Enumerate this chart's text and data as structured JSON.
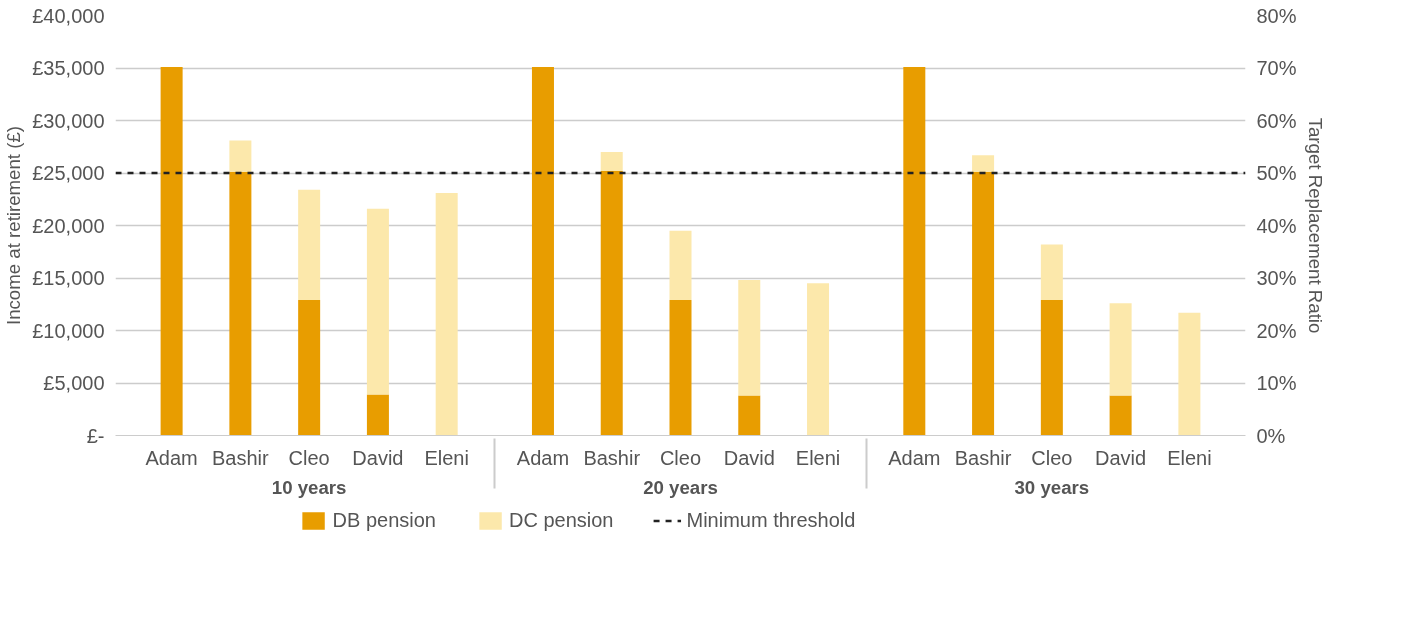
{
  "chart_data": {
    "type": "bar",
    "stacked": true,
    "ylabel": "Income at retirement (£)",
    "y2label": "Target Replacement Ratio",
    "categories": [
      "Adam",
      "Bashir",
      "Cleo",
      "David",
      "Eleni",
      "Adam",
      "Bashir",
      "Cleo",
      "David",
      "Eleni",
      "Adam",
      "Bashir",
      "Cleo",
      "David",
      "Eleni"
    ],
    "annotations": [
      "10 years",
      "20 years",
      "30 years"
    ],
    "series": [
      {
        "name": "DB pension",
        "color": "#e89d00",
        "values": [
          35100,
          25100,
          12900,
          3900,
          0,
          35100,
          25200,
          12900,
          3800,
          0,
          35100,
          25100,
          12900,
          3800,
          0
        ]
      },
      {
        "name": "DC pension",
        "color": "#fce8ab",
        "values": [
          0,
          3000,
          10500,
          17700,
          23100,
          0,
          1800,
          6600,
          11000,
          14500,
          0,
          1600,
          5300,
          8800,
          11700
        ]
      }
    ],
    "ylim": [
      0,
      40000
    ],
    "yticks": [
      {
        "value": 0,
        "label": "£-"
      },
      {
        "value": 5000,
        "label": "£5,000"
      },
      {
        "value": 10000,
        "label": "£10,000"
      },
      {
        "value": 15000,
        "label": "£15,000"
      },
      {
        "value": 20000,
        "label": "£20,000"
      },
      {
        "value": 25000,
        "label": "£25,000"
      },
      {
        "value": 30000,
        "label": "£30,000"
      },
      {
        "value": 35000,
        "label": "£35,000"
      },
      {
        "value": 40000,
        "label": "£40,000"
      }
    ],
    "y2lim": [
      0,
      80
    ],
    "y2ticks": [
      {
        "value": 0,
        "label": "0%"
      },
      {
        "value": 10,
        "label": "10%"
      },
      {
        "value": 20,
        "label": "20%"
      },
      {
        "value": 30,
        "label": "30%"
      },
      {
        "value": 40,
        "label": "40%"
      },
      {
        "value": 50,
        "label": "50%"
      },
      {
        "value": 60,
        "label": "60%"
      },
      {
        "value": 70,
        "label": "70%"
      },
      {
        "value": 80,
        "label": "80%"
      }
    ],
    "ref_lines": [
      {
        "axis": "y",
        "value": 25000,
        "label": "Minimum threshold",
        "color": "#222222",
        "line_style": "dashed"
      }
    ],
    "grid": "y",
    "legend": "bottom"
  }
}
